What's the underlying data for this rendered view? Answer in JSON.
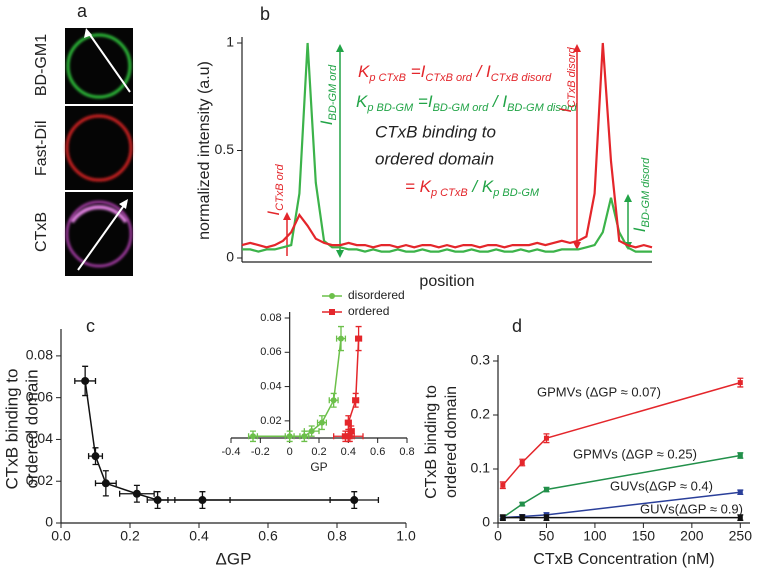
{
  "images": {
    "panel_label": "a",
    "channels": [
      "BD-GM1",
      "Fast-DiI",
      "CTxB"
    ]
  },
  "chart_data": [
    {
      "type": "line",
      "panel_label": "b",
      "ylabel": [
        "normalized intensity (a.u)"
      ],
      "xlabel": "position",
      "x": [
        0,
        2,
        4,
        6,
        8,
        10,
        12,
        14,
        16,
        18,
        20,
        22,
        24,
        26,
        28,
        30,
        32,
        34,
        36,
        38,
        40,
        42,
        44,
        46,
        48,
        50,
        52,
        54,
        56,
        58,
        60,
        62,
        64,
        66,
        68,
        70,
        72,
        74,
        76,
        78,
        80,
        82,
        84,
        86,
        88,
        90,
        92,
        94,
        96,
        98,
        100
      ],
      "xlim": [
        0,
        100
      ],
      "ylim": [
        0,
        1
      ],
      "yticks": [
        0,
        0.5,
        1
      ],
      "series": [
        {
          "color": "#3cb34a",
          "values": [
            0.04,
            0.04,
            0.03,
            0.04,
            0.04,
            0.05,
            0.06,
            0.3,
            1.0,
            0.35,
            0.08,
            0.05,
            0.05,
            0.04,
            0.04,
            0.03,
            0.04,
            0.03,
            0.03,
            0.04,
            0.03,
            0.03,
            0.04,
            0.03,
            0.03,
            0.04,
            0.03,
            0.03,
            0.04,
            0.03,
            0.03,
            0.04,
            0.03,
            0.03,
            0.04,
            0.03,
            0.04,
            0.03,
            0.03,
            0.04,
            0.04,
            0.04,
            0.05,
            0.06,
            0.12,
            0.28,
            0.12,
            0.05,
            0.03,
            0.03,
            0.03
          ]
        },
        {
          "color": "#e4262b",
          "values": [
            0.06,
            0.07,
            0.06,
            0.05,
            0.06,
            0.08,
            0.12,
            0.2,
            0.15,
            0.09,
            0.07,
            0.06,
            0.06,
            0.07,
            0.06,
            0.06,
            0.05,
            0.06,
            0.06,
            0.05,
            0.06,
            0.05,
            0.06,
            0.06,
            0.05,
            0.06,
            0.05,
            0.06,
            0.06,
            0.05,
            0.06,
            0.06,
            0.05,
            0.06,
            0.06,
            0.06,
            0.07,
            0.06,
            0.07,
            0.08,
            0.07,
            0.08,
            0.1,
            0.3,
            1.0,
            0.45,
            0.08,
            0.06,
            0.05,
            0.06,
            0.05
          ]
        }
      ],
      "annotations": [
        [
          "K",
          "p CTxB",
          " =I",
          "CTxB ord",
          " / I",
          "CTxB disord"
        ],
        [
          "K",
          "p BD-GM",
          " =I",
          "BD-GM ord",
          " / I",
          "BD-GM disord"
        ],
        "CTxB binding to",
        "ordered domain",
        [
          "= K",
          "p CTxB",
          " / K",
          "p BD-GM"
        ]
      ],
      "arrow_labels": [
        [
          "I",
          "CTxB ord"
        ],
        [
          "I",
          "BD-GM ord"
        ],
        [
          "I",
          "CTxB disord"
        ],
        [
          "I",
          "BD-GM disord"
        ]
      ]
    },
    {
      "type": "scatter",
      "panel_label": "c",
      "ylabel": [
        "CTxB binding to",
        "ordered domain"
      ],
      "xlabel": "ΔGP",
      "xlim": [
        0,
        1
      ],
      "ylim": [
        0,
        0.09
      ],
      "xticks": [
        {
          "value": 0,
          "label": "0.0"
        },
        0.2,
        0.4,
        0.6,
        0.8,
        {
          "value": 1,
          "label": "1.0"
        }
      ],
      "yticks": [
        0,
        0.02,
        0.04,
        0.06,
        0.08
      ],
      "series": [
        {
          "color": "#111111",
          "x": [
            0.07,
            0.1,
            0.13,
            0.22,
            0.28,
            0.41,
            0.85
          ],
          "values": [
            0.068,
            0.032,
            0.019,
            0.014,
            0.011,
            0.011,
            0.011
          ],
          "xerr": [
            0.03,
            0.02,
            0.03,
            0.05,
            0.03,
            0.08,
            0.07
          ],
          "yerr": [
            0.007,
            0.004,
            0.006,
            0.004,
            0.004,
            0.004,
            0.004
          ]
        }
      ]
    },
    {
      "type": "scatter",
      "xlabel": "GP",
      "xlim": [
        -0.4,
        0.8
      ],
      "ylim": [
        0.01,
        0.08
      ],
      "xticks": [
        -0.4,
        -0.2,
        0,
        0.2,
        0.4,
        0.6,
        0.8
      ],
      "yticks": [
        0.02,
        0.04,
        0.06,
        0.08
      ],
      "legend": "top-center",
      "series": [
        {
          "name": "disordered",
          "color": "#6cc04a",
          "marker": "circle",
          "x": [
            -0.25,
            0,
            0.1,
            0.15,
            0.22,
            0.3,
            0.35
          ],
          "values": [
            0.011,
            0.011,
            0.011,
            0.014,
            0.019,
            0.032,
            0.068
          ],
          "xerr": [
            0.03,
            0.03,
            0.03,
            0.05,
            0.03,
            0.03,
            0.03
          ],
          "yerr": [
            0.003,
            0.003,
            0.003,
            0.003,
            0.004,
            0.004,
            0.007
          ]
        },
        {
          "name": "ordered",
          "color": "#e4262b",
          "marker": "square",
          "x": [
            0.4,
            0.41,
            0.38,
            0.42,
            0.4,
            0.45,
            0.47
          ],
          "values": [
            0.011,
            0.011,
            0.011,
            0.014,
            0.019,
            0.032,
            0.068
          ],
          "xerr": [
            0.1,
            0.03,
            0.02,
            0.02,
            0.02,
            0.02,
            0.02
          ],
          "yerr": [
            0.003,
            0.003,
            0.003,
            0.003,
            0.004,
            0.004,
            0.007
          ]
        }
      ]
    },
    {
      "type": "line",
      "panel_label": "d",
      "ylabel": [
        "CTxB binding to",
        "ordered domain"
      ],
      "xlabel": "CTxB Concentration (nM)",
      "x": [
        5,
        25,
        50,
        250
      ],
      "xlim": [
        0,
        260
      ],
      "ylim": [
        0,
        0.3
      ],
      "xticks": [
        0,
        50,
        100,
        150,
        200,
        250
      ],
      "yticks": [
        0,
        0.1,
        0.2,
        0.3
      ],
      "series": [
        {
          "name": "GPMVs (ΔGP ≈ 0.07)",
          "color": "#e4262b",
          "values": [
            0.07,
            0.112,
            0.157,
            0.26
          ],
          "yerr": [
            0.006,
            0.006,
            0.008,
            0.008
          ]
        },
        {
          "name": "GPMVs (ΔGP ≈ 0.25)",
          "color": "#22904a",
          "values": [
            0.01,
            0.035,
            0.062,
            0.125
          ],
          "yerr": [
            0.003,
            0.003,
            0.004,
            0.005
          ]
        },
        {
          "name": "GUVs(ΔGP ≈ 0.4)",
          "color": "#2a3f9a",
          "values": [
            0.01,
            0.012,
            0.015,
            0.057
          ],
          "yerr": [
            0.002,
            0.003,
            0.004,
            0.004
          ]
        },
        {
          "name": "GUVs(ΔGP ≈ 0.9)",
          "color": "#111111",
          "values": [
            0.01,
            0.01,
            0.01,
            0.01
          ],
          "yerr": [
            0.005,
            0.005,
            0.005,
            0.005
          ]
        }
      ]
    }
  ]
}
